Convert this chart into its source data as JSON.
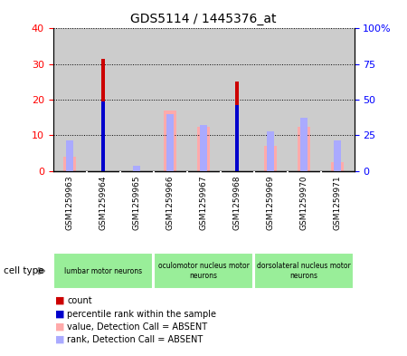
{
  "title": "GDS5114 / 1445376_at",
  "samples": [
    "GSM1259963",
    "GSM1259964",
    "GSM1259965",
    "GSM1259966",
    "GSM1259967",
    "GSM1259968",
    "GSM1259969",
    "GSM1259970",
    "GSM1259971"
  ],
  "count_values": [
    0,
    31.5,
    0,
    0,
    0,
    25.0,
    0,
    0,
    0
  ],
  "rank_values": [
    0,
    49.0,
    0,
    0,
    0,
    46.5,
    0,
    0,
    0
  ],
  "absent_value": [
    4.0,
    0,
    0,
    17.0,
    12.5,
    0,
    7.0,
    12.5,
    2.5
  ],
  "absent_rank": [
    21.5,
    0,
    3.5,
    40.0,
    32.5,
    0,
    27.5,
    37.5,
    21.5
  ],
  "left_yticks": [
    0,
    10,
    20,
    30,
    40
  ],
  "right_yticks": [
    0,
    25,
    50,
    75,
    100
  ],
  "ylim_left": [
    0,
    40
  ],
  "ylim_right": [
    0,
    100
  ],
  "count_color": "#cc0000",
  "rank_color": "#0000cc",
  "absent_value_color": "#ffaaaa",
  "absent_rank_color": "#aaaaff",
  "col_bg_color": "#cccccc",
  "plot_bg_color": "#ffffff",
  "cell_type_groups": [
    {
      "label": "lumbar motor neurons",
      "start": 0,
      "end": 3
    },
    {
      "label": "oculomotor nucleus motor\nneurons",
      "start": 3,
      "end": 6
    },
    {
      "label": "dorsolateral nucleus motor\nneurons",
      "start": 6,
      "end": 9
    }
  ],
  "cell_type_color": "#99ee99",
  "legend_items": [
    {
      "label": "count",
      "color": "#cc0000"
    },
    {
      "label": "percentile rank within the sample",
      "color": "#0000cc"
    },
    {
      "label": "value, Detection Call = ABSENT",
      "color": "#ffaaaa"
    },
    {
      "label": "rank, Detection Call = ABSENT",
      "color": "#aaaaff"
    }
  ]
}
